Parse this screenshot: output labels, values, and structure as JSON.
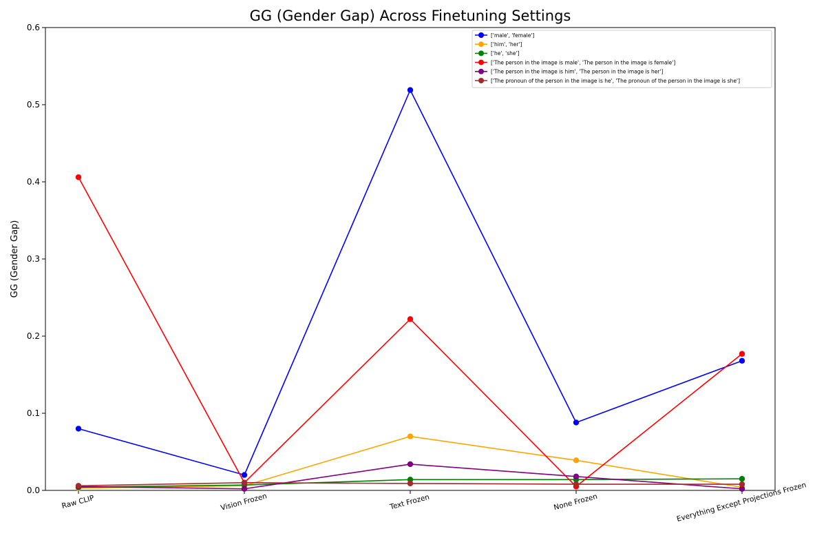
{
  "chart_data": {
    "type": "line",
    "title": "GG (Gender Gap) Across Finetuning Settings",
    "xlabel": "",
    "ylabel": "GG (Gender Gap)",
    "categories": [
      "Raw CLIP",
      "Vision Frozen",
      "Text Frozen",
      "None Frozen",
      "Everything Except Projections Frozen"
    ],
    "ylim": [
      0,
      0.6
    ],
    "yticks": [
      0.0,
      0.1,
      0.2,
      0.3,
      0.4,
      0.5,
      0.6
    ],
    "ytick_labels": [
      "0.0",
      "0.1",
      "0.2",
      "0.3",
      "0.4",
      "0.5",
      "0.6"
    ],
    "grid": false,
    "legend_position": "top-right",
    "series": [
      {
        "name": "['male', 'female']",
        "color": "#0000ff",
        "values": [
          0.08,
          0.02,
          0.519,
          0.088,
          0.168
        ]
      },
      {
        "name": "['him', 'her']",
        "color": "#ffa500",
        "values": [
          0.003,
          0.006,
          0.07,
          0.039,
          0.004
        ]
      },
      {
        "name": "['he', 'she']",
        "color": "#008000",
        "values": [
          0.004,
          0.007,
          0.014,
          0.014,
          0.015
        ]
      },
      {
        "name": "['The person in the image is male', 'The person in the image is female']",
        "color": "#ff0000",
        "values": [
          0.406,
          0.01,
          0.222,
          0.005,
          0.177
        ]
      },
      {
        "name": "['The person in the image is him', 'The person in the image is her']",
        "color": "#800080",
        "values": [
          0.005,
          0.002,
          0.034,
          0.018,
          0.002
        ]
      },
      {
        "name": "['The pronoun of the person in the image is he', 'The pronoun of the person in the image is she']",
        "color": "#a52a2a",
        "values": [
          0.006,
          0.01,
          0.009,
          0.008,
          0.008
        ]
      }
    ]
  }
}
